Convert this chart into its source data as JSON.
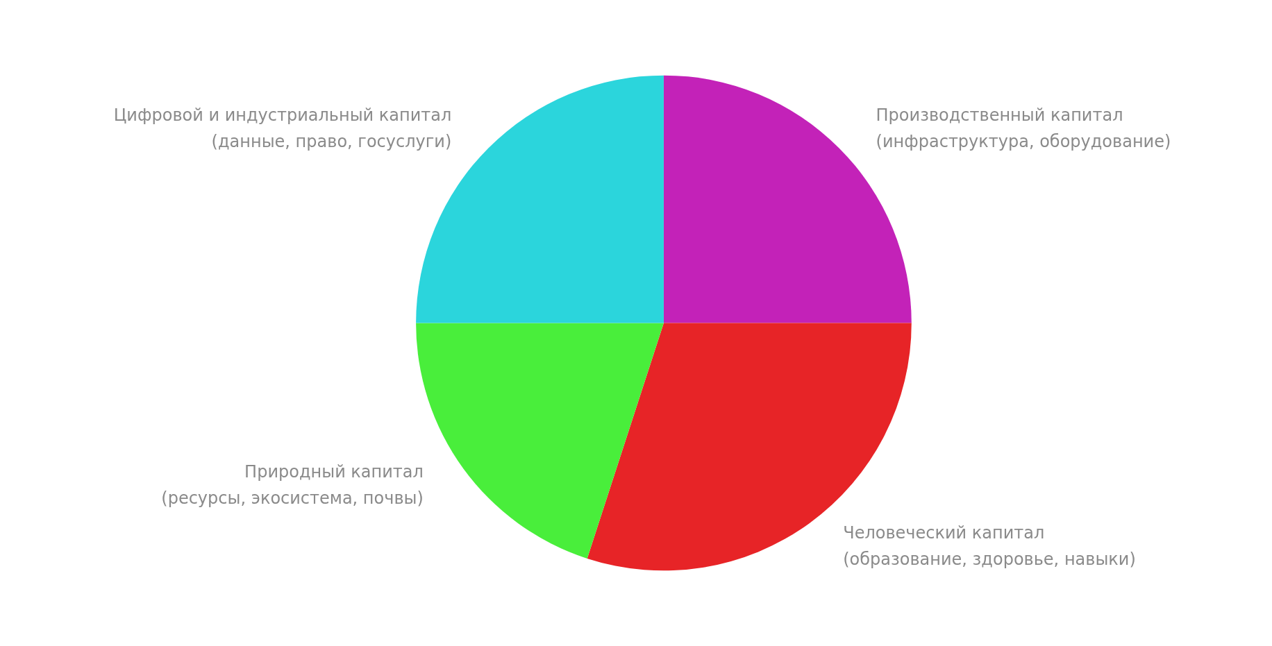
{
  "chart_data": {
    "type": "pie",
    "categories": [
      "Производственный капитал\n(инфраструктура, оборудование)",
      "Человеческий капитал\n(образование, здоровье, навыки)",
      "Природный капитал\n(ресурсы, экосистема, почвы)",
      "Цифровой и индустриальный капитал\n(данные, право, госуслуги)"
    ],
    "values": [
      25,
      30,
      20,
      25
    ],
    "colors": [
      "#c322b8",
      "#e72427",
      "#49ee3b",
      "#2bd5dc"
    ],
    "legend": false
  }
}
